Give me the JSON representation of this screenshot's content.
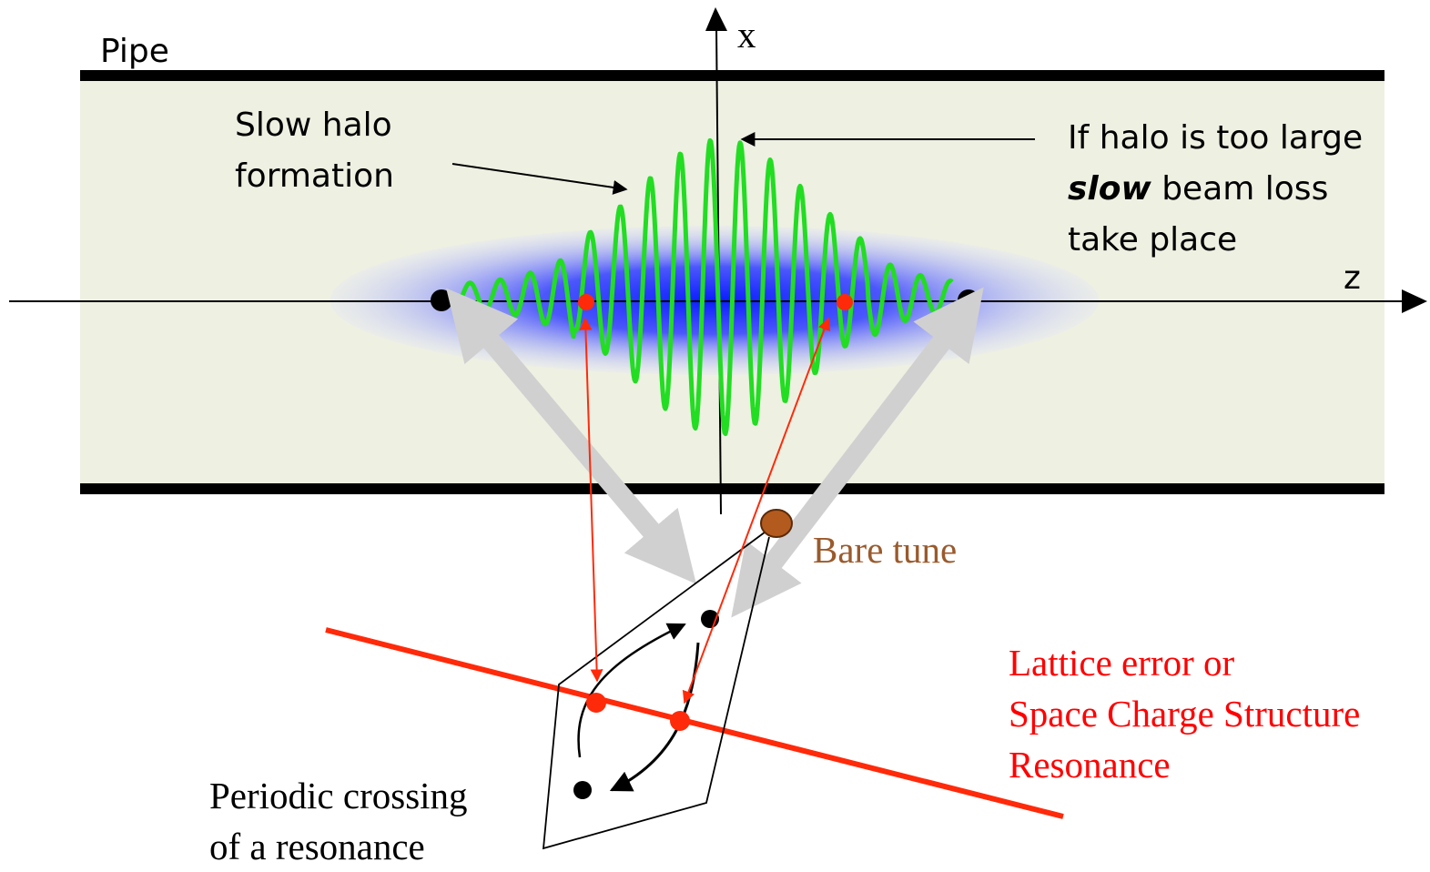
{
  "labels": {
    "pipe": "Pipe",
    "axis_x": "x",
    "axis_z": "z",
    "slow_halo": [
      "Slow halo",
      "formation"
    ],
    "halo_loss": {
      "line1": "If halo is too large",
      "line2_emph": "slow",
      "line2_rest": " beam loss",
      "line3": "take place"
    },
    "bare_tune": "Bare tune",
    "resonance": [
      "Lattice error or",
      "Space Charge Structure",
      "Resonance"
    ],
    "periodic": [
      "Periodic crossing",
      "of a resonance"
    ]
  },
  "colors": {
    "pipe_fill": "#eef0e2",
    "pipe_wall": "#000000",
    "beam_core": "#1a2bff",
    "halo_wave": "#22dd22",
    "resonance_line": "#ff2a0a",
    "bare_tune_dot": "#b35a1e",
    "bare_tune_text": "#9a5a2c",
    "resonance_text": "#ff0000",
    "grey_arrow": "#d0d0d0"
  }
}
